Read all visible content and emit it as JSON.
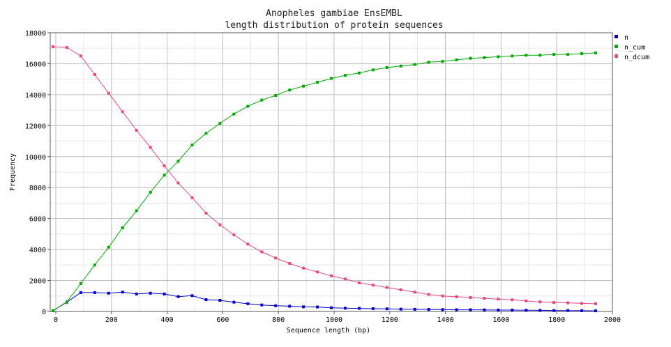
{
  "chart_data": {
    "type": "line",
    "title": [
      "Anopheles gambiae EnsEMBL",
      "length distribution of protein sequences"
    ],
    "xlabel": "Sequence length (bp)",
    "ylabel": "Frequency",
    "xlim": [
      -20,
      2000
    ],
    "ylim": [
      0,
      18000
    ],
    "xticks": [
      0,
      200,
      400,
      600,
      800,
      1000,
      1200,
      1400,
      1600,
      1800,
      2000
    ],
    "yticks": [
      0,
      2000,
      4000,
      6000,
      8000,
      10000,
      12000,
      14000,
      16000,
      18000
    ],
    "grid": true,
    "legend_position": "top-right",
    "x": [
      -10,
      40,
      90,
      140,
      190,
      240,
      290,
      340,
      390,
      440,
      490,
      540,
      590,
      640,
      690,
      740,
      790,
      840,
      890,
      940,
      990,
      1040,
      1090,
      1140,
      1190,
      1240,
      1290,
      1340,
      1390,
      1440,
      1490,
      1540,
      1590,
      1640,
      1690,
      1740,
      1790,
      1840,
      1890,
      1940
    ],
    "series": [
      {
        "name": "n",
        "color": "#0000cc",
        "values": [
          50,
          600,
          1220,
          1220,
          1180,
          1250,
          1130,
          1180,
          1130,
          960,
          1020,
          760,
          720,
          600,
          500,
          420,
          370,
          340,
          300,
          290,
          240,
          210,
          200,
          180,
          170,
          150,
          140,
          130,
          120,
          110,
          110,
          100,
          90,
          90,
          80,
          70,
          60,
          60,
          50,
          40
        ]
      },
      {
        "name": "n_cum",
        "color": "#00aa00",
        "values": [
          50,
          620,
          1800,
          3000,
          4150,
          5400,
          6500,
          7700,
          8800,
          9700,
          10750,
          11500,
          12150,
          12750,
          13250,
          13650,
          13950,
          14300,
          14550,
          14800,
          15050,
          15250,
          15400,
          15600,
          15750,
          15850,
          15950,
          16100,
          16150,
          16250,
          16350,
          16400,
          16450,
          16500,
          16550,
          16550,
          16600,
          16600,
          16650,
          16700
        ]
      },
      {
        "name": "n_dcum",
        "color": "#e8487a",
        "values": [
          17100,
          17050,
          16500,
          15300,
          14100,
          12900,
          11700,
          10600,
          9400,
          8300,
          7350,
          6350,
          5600,
          4950,
          4350,
          3850,
          3450,
          3100,
          2800,
          2550,
          2300,
          2100,
          1850,
          1700,
          1550,
          1400,
          1250,
          1100,
          1000,
          950,
          900,
          850,
          800,
          750,
          680,
          620,
          580,
          560,
          520,
          500
        ]
      }
    ]
  }
}
